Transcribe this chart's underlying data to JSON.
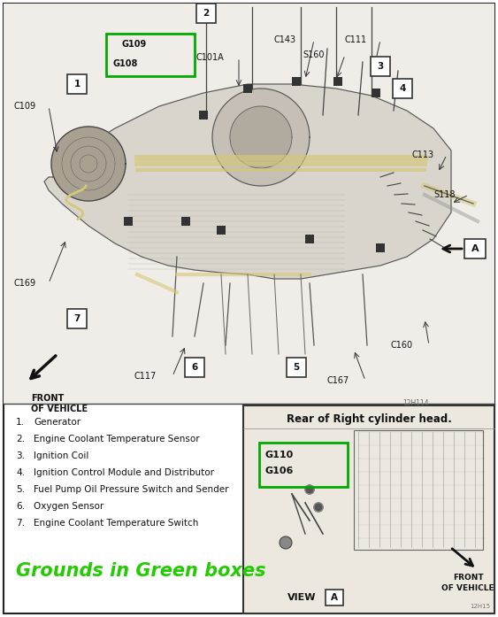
{
  "bg_color": "#ffffff",
  "border_color": "#333333",
  "legend_items": [
    "Generator",
    "Engine Coolant Temperature Sensor",
    "Ignition Coil",
    "Ignition Control Module and Distributor",
    "Fuel Pump Oil Pressure Switch and Sender",
    "Oxygen Sensor",
    "Engine Coolant Temperature Switch"
  ],
  "ground_text": "Grounds in Green boxes",
  "ground_color": "#22cc00",
  "diagram_num_main": "12H114",
  "diagram_num_inset": "12H15"
}
